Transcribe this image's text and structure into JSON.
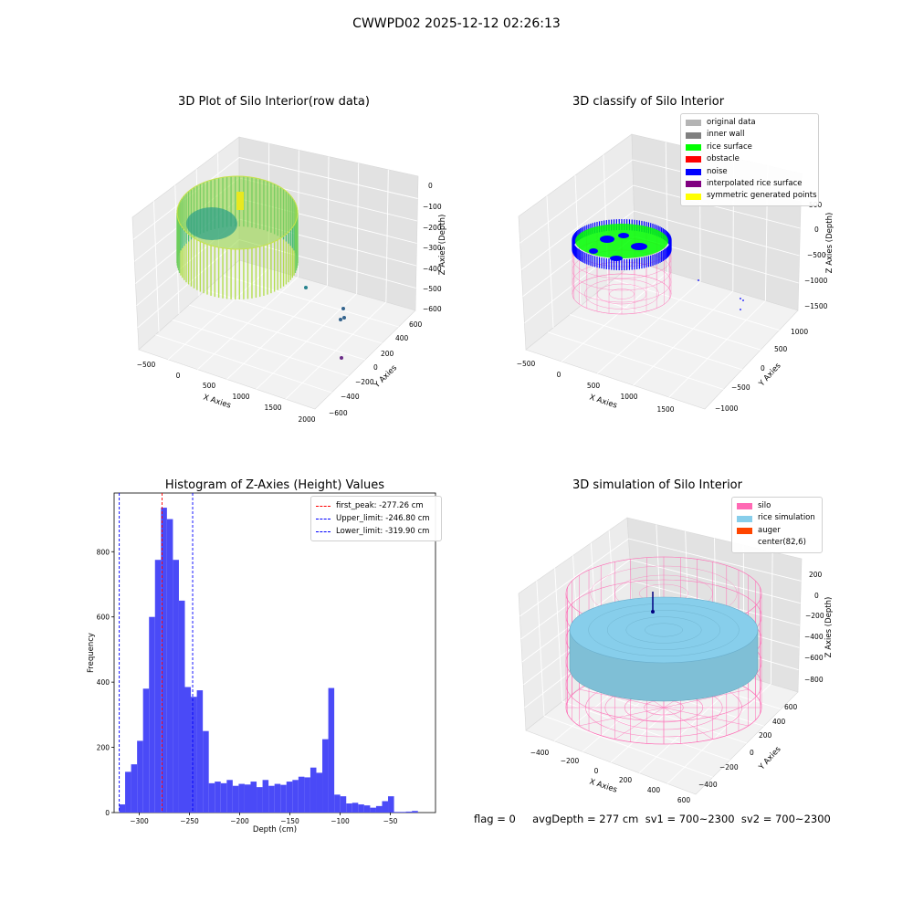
{
  "figure_title": "CWWPD02 2025-12-12 02:26:13",
  "status_line": "flag = 0     avgDepth = 277 cm  sv1 = 700~2300  sv2 = 700~2300",
  "colors": {
    "rice_surface": "#00ff00",
    "noise": "#0000ff",
    "inner_wall": "#808080",
    "original_data": "#b4b4b4",
    "obstacle": "#ff0000",
    "interpolated_rice_surface": "#800080",
    "symmetric_generated_points": "#ffff00",
    "silo": "#ff69b4",
    "rice_simulation": "#87ceeb",
    "auger": "#ff4500",
    "histogram_bar": "#4a4af7",
    "first_peak_line": "#ff0000",
    "limit_line": "#0000ff"
  },
  "chart_data": [
    {
      "type": "scatter",
      "projection": "3d",
      "title": "3D Plot of Silo Interior(row data)",
      "xlabel": "X Axies",
      "ylabel": "Y Axies",
      "zlabel": "Z Axies (Depth)",
      "xticks": [
        "−500",
        "0",
        "500",
        "1000",
        "1500",
        "2000"
      ],
      "yticks": [
        "−600",
        "−400",
        "−200",
        "0",
        "200",
        "400",
        "600"
      ],
      "zticks": [
        "0",
        "−100",
        "−200",
        "−300",
        "−400",
        "−500",
        "−600"
      ],
      "colormap": "viridis"
    },
    {
      "type": "scatter",
      "projection": "3d",
      "title": "3D classify of Silo Interior",
      "xlabel": "X Axies",
      "ylabel": "Y Axies",
      "zlabel": "Z Axies (Depth)",
      "xticks": [
        "−500",
        "0",
        "500",
        "1000",
        "1500"
      ],
      "yticks": [
        "−1000",
        "−500",
        "0",
        "500",
        "1000"
      ],
      "zticks": [
        "500",
        "0",
        "−500",
        "−1000",
        "−1500"
      ],
      "legend_position": "top-right",
      "legend": [
        {
          "label": "original data",
          "color": "#b4b4b4"
        },
        {
          "label": "inner wall",
          "color": "#808080"
        },
        {
          "label": "rice surface",
          "color": "#00ff00"
        },
        {
          "label": "obstacle",
          "color": "#ff0000"
        },
        {
          "label": "noise",
          "color": "#0000ff"
        },
        {
          "label": "interpolated rice surface",
          "color": "#800080"
        },
        {
          "label": "symmetric generated points",
          "color": "#ffff00"
        }
      ]
    },
    {
      "type": "bar",
      "title": "Histogram of Z-Axies (Height) Values",
      "xlabel": "Depth (cm)",
      "ylabel": "Frequency",
      "xlim": [
        -325,
        -5
      ],
      "ylim": [
        0,
        980
      ],
      "xticks": [
        -300,
        -250,
        -200,
        -150,
        -100,
        -50
      ],
      "xtick_labels": [
        "−300",
        "−250",
        "−200",
        "−150",
        "−100",
        "−50"
      ],
      "yticks": [
        0,
        200,
        400,
        600,
        800
      ],
      "yticks_labels": [
        "0",
        "200",
        "400",
        "600",
        "800"
      ],
      "bin_start": -320,
      "bin_width": 5.95,
      "values": [
        25,
        125,
        148,
        220,
        380,
        600,
        775,
        935,
        900,
        775,
        650,
        385,
        355,
        375,
        250,
        90,
        95,
        90,
        100,
        82,
        88,
        86,
        95,
        78,
        100,
        82,
        88,
        85,
        95,
        100,
        110,
        108,
        138,
        122,
        225,
        382,
        55,
        50,
        28,
        30,
        25,
        22,
        15,
        20,
        35,
        50,
        2,
        2,
        3,
        5
      ],
      "vlines": [
        {
          "x": -277.26,
          "color": "#ff0000",
          "label": "first_peak: -277.26 cm"
        },
        {
          "x": -246.8,
          "color": "#0000ff",
          "label": "Upper_limit: -246.80 cm"
        },
        {
          "x": -319.9,
          "color": "#0000ff",
          "label": "Lower_limit: -319.90 cm"
        }
      ],
      "legend_position": "top-right"
    },
    {
      "type": "surface",
      "projection": "3d",
      "title": "3D simulation of Silo Interior",
      "xlabel": "X Axies",
      "ylabel": "Y Axies",
      "zlabel": "Z Axies (Depth)",
      "xticks": [
        "−400",
        "−200",
        "0",
        "200",
        "400",
        "600"
      ],
      "yticks": [
        "−400",
        "−200",
        "0",
        "200",
        "400",
        "600"
      ],
      "zticks": [
        "200",
        "0",
        "−200",
        "−400",
        "−600",
        "−800"
      ],
      "legend_position": "top-right",
      "legend": [
        {
          "label": "silo",
          "color": "#ff69b4"
        },
        {
          "label": "rice simulation",
          "color": "#87ceeb"
        },
        {
          "label": "auger",
          "color": "#ff4500"
        },
        {
          "label": "center(82,6)",
          "color": ""
        }
      ]
    }
  ]
}
